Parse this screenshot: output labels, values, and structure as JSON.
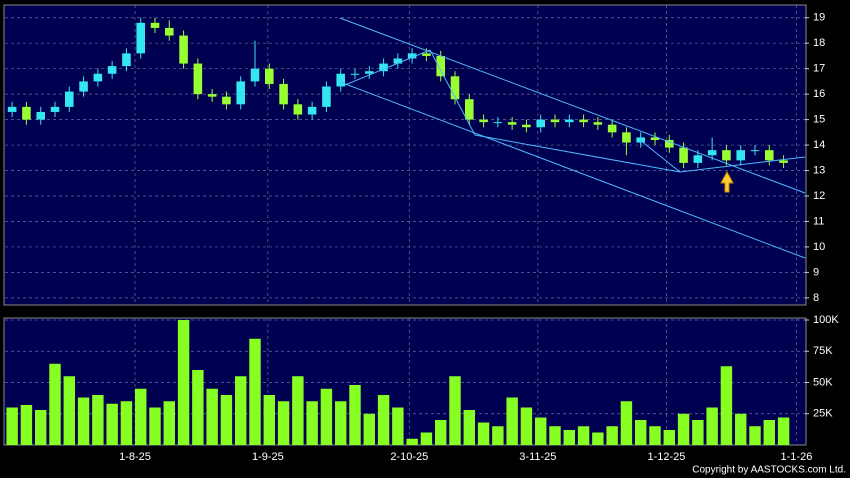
{
  "chart_data": [
    {
      "type": "candlestick",
      "categories": [
        null,
        null,
        null,
        null,
        null,
        null,
        null,
        null,
        null,
        null,
        null,
        null,
        null,
        null,
        null,
        null,
        null,
        null,
        null,
        null,
        null,
        null,
        null,
        null,
        null,
        null,
        null,
        null,
        null,
        null,
        null,
        null,
        null,
        null,
        null,
        null,
        null,
        null,
        null,
        null,
        null,
        null,
        null,
        null,
        null,
        null,
        null,
        null,
        null,
        null,
        null,
        null,
        null,
        null,
        null
      ],
      "open": [
        15.3,
        15.5,
        15.0,
        15.3,
        15.5,
        16.1,
        16.5,
        16.8,
        17.1,
        17.6,
        18.8,
        18.6,
        18.3,
        17.2,
        16.0,
        15.9,
        15.6,
        16.5,
        17.0,
        16.4,
        15.6,
        15.2,
        15.5,
        16.3,
        16.8,
        16.8,
        16.9,
        17.2,
        17.4,
        17.6,
        17.5,
        16.7,
        15.8,
        15.0,
        14.9,
        14.9,
        14.8,
        14.7,
        15.0,
        14.9,
        15.0,
        14.9,
        14.8,
        14.5,
        14.1,
        14.3,
        14.2,
        13.9,
        13.3,
        13.6,
        13.8,
        13.4,
        13.8,
        13.8,
        13.4
      ],
      "high": [
        15.7,
        15.7,
        15.5,
        15.7,
        16.3,
        16.7,
        17.0,
        17.3,
        17.8,
        19.0,
        19.0,
        18.9,
        18.5,
        17.4,
        16.2,
        16.1,
        16.7,
        18.1,
        17.2,
        16.6,
        15.8,
        15.7,
        16.5,
        17.0,
        17.0,
        17.1,
        17.4,
        17.6,
        17.8,
        17.8,
        17.7,
        16.9,
        16.0,
        15.2,
        15.1,
        15.1,
        15.0,
        15.2,
        15.2,
        15.2,
        15.2,
        15.1,
        15.0,
        14.7,
        14.5,
        14.5,
        14.4,
        14.1,
        13.8,
        14.3,
        14.0,
        14.0,
        14.0,
        14.0,
        13.6
      ],
      "low": [
        15.1,
        14.8,
        14.8,
        15.1,
        15.3,
        15.9,
        16.3,
        16.6,
        16.9,
        17.4,
        18.4,
        18.1,
        17.0,
        15.8,
        15.7,
        15.4,
        15.4,
        16.3,
        16.2,
        15.4,
        15.0,
        15.0,
        15.3,
        16.1,
        16.6,
        16.6,
        16.7,
        17.0,
        17.2,
        17.3,
        16.5,
        15.6,
        14.8,
        14.7,
        14.7,
        14.6,
        14.5,
        14.5,
        14.7,
        14.7,
        14.7,
        14.6,
        14.3,
        13.6,
        13.9,
        14.0,
        13.7,
        13.1,
        13.1,
        13.4,
        13.2,
        13.2,
        13.6,
        13.2,
        13.1
      ],
      "close": [
        15.5,
        15.0,
        15.3,
        15.5,
        16.1,
        16.5,
        16.8,
        17.1,
        17.6,
        18.8,
        18.6,
        18.3,
        17.2,
        16.0,
        15.9,
        15.6,
        16.5,
        17.0,
        16.4,
        15.6,
        15.2,
        15.5,
        16.3,
        16.8,
        16.8,
        16.9,
        17.2,
        17.4,
        17.6,
        17.5,
        16.7,
        15.8,
        15.0,
        14.9,
        14.9,
        14.8,
        14.7,
        15.0,
        14.9,
        15.0,
        14.9,
        14.8,
        14.5,
        14.1,
        14.3,
        14.2,
        13.9,
        13.3,
        13.6,
        13.8,
        13.4,
        13.8,
        13.8,
        13.4,
        13.3
      ],
      "up_color": "#33e6f0",
      "down_color": "#99ff33",
      "xlim": [
        -0.5,
        55.5
      ],
      "ylim": [
        7.72,
        19.5
      ],
      "yticks": [
        8,
        9,
        10,
        11,
        12,
        13,
        14,
        15,
        16,
        17,
        18,
        19
      ],
      "grid": true
    },
    {
      "type": "bar",
      "values": [
        30000,
        32000,
        28000,
        65000,
        55000,
        38000,
        40000,
        33000,
        35000,
        45000,
        30000,
        35000,
        100000,
        60000,
        45000,
        40000,
        55000,
        85000,
        40000,
        35000,
        55000,
        35000,
        45000,
        35000,
        48000,
        25000,
        40000,
        30000,
        5000,
        10000,
        20000,
        55000,
        28000,
        18000,
        15000,
        38000,
        30000,
        22000,
        15000,
        12000,
        15000,
        10000,
        15000,
        35000,
        20000,
        15000,
        12000,
        25000,
        20000,
        30000,
        63000,
        25000,
        15000,
        20000,
        22000
      ],
      "color": "#88ff22",
      "xlim": [
        -0.5,
        55.5
      ],
      "ylim": [
        0,
        101600
      ],
      "yticks": [
        {
          "value": 25000,
          "label": "25K"
        },
        {
          "value": 50000,
          "label": "50K"
        },
        {
          "value": 75000,
          "label": "75K"
        },
        {
          "value": 100000,
          "label": "100K"
        }
      ],
      "xticks": [
        {
          "value": 8.6,
          "label": "1-8-25"
        },
        {
          "value": 17.9,
          "label": "1-9-25"
        },
        {
          "value": 27.8,
          "label": "2-10-25"
        },
        {
          "value": 36.8,
          "label": "3-11-25"
        },
        {
          "value": 45.8,
          "label": "1-12-25"
        },
        {
          "value": 54.9,
          "label": "1-1-26"
        }
      ],
      "grid": true
    }
  ],
  "copyright": "Copyright by AASTOCKS.com Ltd."
}
